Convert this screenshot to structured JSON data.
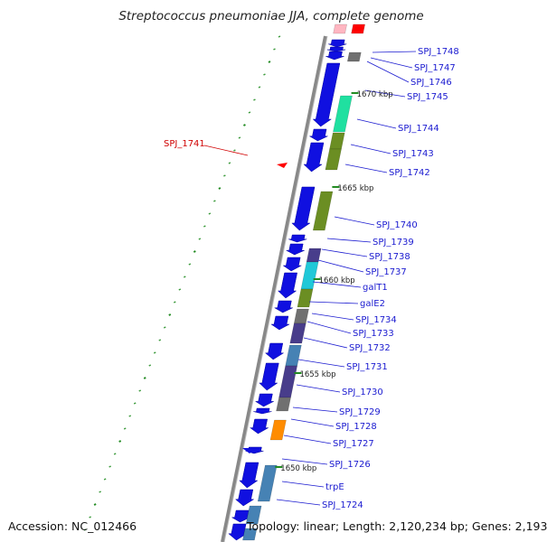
{
  "title": "Streptococcus pneumoniae JJA, complete genome",
  "footer": {
    "accession": "Accession: NC_012466",
    "topology": "Topology: linear; Length: 2,120,234 bp; Genes: 2,193"
  },
  "ticks": [
    {
      "label": "1670 kbp"
    },
    {
      "label": "1665 kbp"
    },
    {
      "label": "1660 kbp"
    },
    {
      "label": "1655 kbp"
    },
    {
      "label": "1650 kbp"
    }
  ],
  "gene_labels": [
    "SPJ_1748",
    "SPJ_1747",
    "SPJ_1746",
    "SPJ_1745",
    "SPJ_1744",
    "SPJ_1743",
    "SPJ_1742",
    "SPJ_1740",
    "SPJ_1739",
    "SPJ_1738",
    "SPJ_1737",
    "galT1",
    "galE2",
    "SPJ_1734",
    "SPJ_1733",
    "SPJ_1732",
    "SPJ_1731",
    "SPJ_1730",
    "SPJ_1729",
    "SPJ_1728",
    "SPJ_1727",
    "SPJ_1726",
    "trpE",
    "SPJ_1724"
  ],
  "left_label": "SPJ_1741",
  "colors": {
    "backbone": "#808080",
    "gene_blue": "#1010e0",
    "olive": "#6b8e23",
    "teal": "#20e0a0",
    "cyan": "#20c8d8",
    "slate": "#483d8b",
    "steel": "#4682b4",
    "grey": "#707070",
    "orange": "#ff8c00",
    "red": "#ff0000",
    "pink": "#ffb6c1",
    "tick_green": "#228b22",
    "label_blue": "#1a1ad0",
    "label_red": "#d00000"
  }
}
